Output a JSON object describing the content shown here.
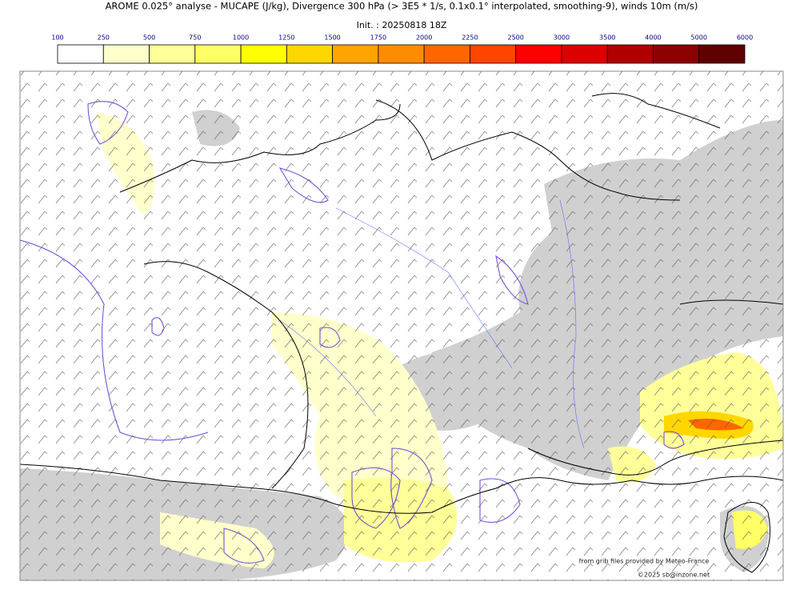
{
  "header": {
    "title": "AROME 0.025° analyse - MUCAPE (J/kg), Divergence 300 hPa (> 3E5 * 1/s, 0.1x0.1° interpolated, smoothing-9), winds 10m (m/s)",
    "init": "Init. : 20250818 18Z"
  },
  "colorbar": {
    "ticks": [
      100,
      250,
      500,
      750,
      1000,
      1250,
      1500,
      1750,
      2000,
      2250,
      2500,
      3000,
      3500,
      4000,
      5000,
      6000
    ],
    "colors": [
      "#ffffff",
      "#ffffcc",
      "#ffff99",
      "#ffff66",
      "#ffff00",
      "#ffd700",
      "#ffa500",
      "#ff8c00",
      "#ff6600",
      "#ff4500",
      "#ff0000",
      "#dd0000",
      "#b00000",
      "#8b0000",
      "#600000"
    ]
  },
  "credits": {
    "source": "from grib files provided by Meteo-France",
    "copyright": "©2025 sb@inzone.net"
  }
}
